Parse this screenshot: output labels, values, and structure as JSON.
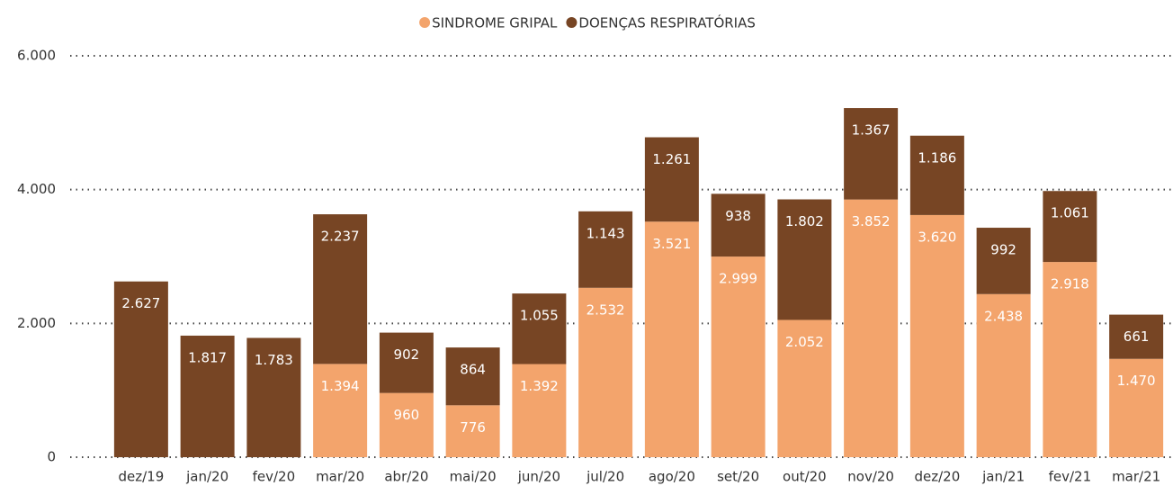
{
  "chart_data": {
    "type": "stacked_bar",
    "categories": [
      "dez/19",
      "jan/20",
      "fev/20",
      "mar/20",
      "abr/20",
      "mai/20",
      "jun/20",
      "jul/20",
      "ago/20",
      "set/20",
      "out/20",
      "nov/20",
      "dez/20",
      "jan/21",
      "fev/21",
      "mar/21"
    ],
    "series": [
      {
        "name": "SINDROME GRIPAL",
        "color": "#f3a46c",
        "values": [
          null,
          null,
          null,
          1394,
          960,
          776,
          1392,
          2532,
          3521,
          2999,
          2052,
          3852,
          3620,
          2438,
          2918,
          1470
        ],
        "value_labels": [
          null,
          null,
          null,
          "1.394",
          "960",
          "776",
          "1.392",
          "2.532",
          "3.521",
          "2.999",
          "2.052",
          "3.852",
          "3.620",
          "2.438",
          "2.918",
          "1.470"
        ]
      },
      {
        "name": "DOENÇAS RESPIRATÓRIAS",
        "color": "#774524",
        "values": [
          2627,
          1817,
          1783,
          2237,
          902,
          864,
          1055,
          1143,
          1261,
          938,
          1802,
          1367,
          1186,
          992,
          1061,
          661
        ],
        "value_labels": [
          "2.627",
          "1.817",
          "1.783",
          "2.237",
          "902",
          "864",
          "1.055",
          "1.143",
          "1.261",
          "938",
          "1.802",
          "1.367",
          "1.186",
          "992",
          "1.061",
          "661"
        ]
      }
    ],
    "ylim": [
      0,
      6000
    ],
    "yticks": [
      0,
      {
        "value": 2000,
        "label": "2.000"
      },
      {
        "value": 4000,
        "label": "4.000"
      },
      {
        "value": 6000,
        "label": "6.000"
      }
    ],
    "grid": true,
    "legend": "top"
  }
}
